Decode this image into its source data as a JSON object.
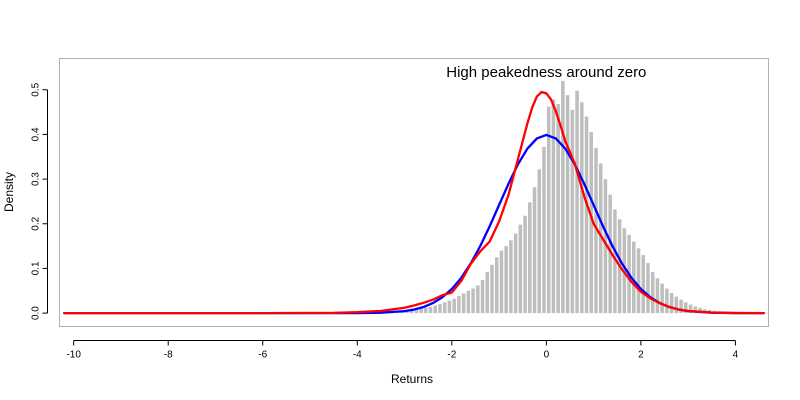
{
  "chart_data": {
    "type": "bar",
    "title": "",
    "xlabel": "Returns",
    "ylabel": "Density",
    "annotation": {
      "text": "High peakedness around zero",
      "x": 0.0,
      "y": 0.54
    },
    "xlim": [
      -10.3,
      4.7
    ],
    "ylim": [
      -0.03,
      0.57
    ],
    "x_ticks": [
      -10,
      -8,
      -6,
      -4,
      -2,
      0,
      2,
      4
    ],
    "x_tick_labels": [
      "-10",
      "-8",
      "-6",
      "-4",
      "-2",
      "0",
      "2",
      "4"
    ],
    "y_ticks": [
      0.0,
      0.1,
      0.2,
      0.3,
      0.4,
      0.5
    ],
    "y_tick_labels": [
      "0.0",
      "0.1",
      "0.2",
      "0.3",
      "0.4",
      "0.5"
    ],
    "grid": false,
    "histogram": {
      "name": "",
      "color": "#bebebe",
      "bin_width": 0.1,
      "start": -4.5,
      "values": [
        0.001,
        0.001,
        0.001,
        0.001,
        0.002,
        0.002,
        0.002,
        0.002,
        0.003,
        0.003,
        0.003,
        0.004,
        0.004,
        0.005,
        0.006,
        0.007,
        0.008,
        0.009,
        0.01,
        0.012,
        0.014,
        0.017,
        0.02,
        0.024,
        0.028,
        0.032,
        0.038,
        0.044,
        0.05,
        0.055,
        0.062,
        0.074,
        0.092,
        0.108,
        0.125,
        0.14,
        0.15,
        0.163,
        0.178,
        0.198,
        0.218,
        0.248,
        0.282,
        0.322,
        0.372,
        0.462,
        0.478,
        0.468,
        0.52,
        0.488,
        0.455,
        0.498,
        0.472,
        0.44,
        0.405,
        0.37,
        0.335,
        0.3,
        0.265,
        0.232,
        0.21,
        0.19,
        0.175,
        0.16,
        0.145,
        0.13,
        0.112,
        0.092,
        0.078,
        0.066,
        0.055,
        0.045,
        0.037,
        0.03,
        0.024,
        0.019,
        0.015,
        0.012,
        0.009,
        0.007,
        0.005,
        0.004,
        0.003,
        0.002,
        0.002,
        0.001,
        0.001,
        0.001
      ]
    },
    "series": [
      {
        "name": "",
        "type": "line",
        "color": "#0000ff",
        "x": [
          -10.2,
          -6,
          -4,
          -3.5,
          -3,
          -2.8,
          -2.6,
          -2.4,
          -2.2,
          -2.0,
          -1.8,
          -1.6,
          -1.4,
          -1.2,
          -1.0,
          -0.8,
          -0.6,
          -0.4,
          -0.2,
          0.0,
          0.2,
          0.4,
          0.6,
          0.8,
          1.0,
          1.2,
          1.4,
          1.6,
          1.8,
          2.0,
          2.2,
          2.4,
          2.6,
          2.8,
          3.0,
          3.5,
          4.0,
          4.6
        ],
        "y": [
          0,
          0,
          0.0001,
          0.0009,
          0.0044,
          0.0079,
          0.0136,
          0.0224,
          0.0355,
          0.054,
          0.079,
          0.1109,
          0.1497,
          0.1942,
          0.242,
          0.2897,
          0.3332,
          0.3683,
          0.391,
          0.3989,
          0.391,
          0.3683,
          0.3332,
          0.2897,
          0.242,
          0.1942,
          0.1497,
          0.1109,
          0.079,
          0.054,
          0.0355,
          0.0224,
          0.0136,
          0.0079,
          0.0044,
          0.0009,
          0.0001,
          0
        ]
      },
      {
        "name": "",
        "type": "line",
        "color": "#ff0000",
        "x": [
          -10.2,
          -6,
          -4.5,
          -4,
          -3.5,
          -3,
          -2.8,
          -2.6,
          -2.4,
          -2.2,
          -2.0,
          -1.8,
          -1.6,
          -1.4,
          -1.2,
          -1.0,
          -0.8,
          -0.6,
          -0.4,
          -0.3,
          -0.2,
          -0.1,
          0.0,
          0.1,
          0.2,
          0.3,
          0.4,
          0.6,
          0.8,
          1.0,
          1.2,
          1.4,
          1.6,
          1.8,
          2.0,
          2.2,
          2.4,
          2.6,
          2.8,
          3.0,
          3.5,
          4.0,
          4.6
        ],
        "y": [
          0,
          0,
          0.0005,
          0.002,
          0.005,
          0.012,
          0.017,
          0.023,
          0.03,
          0.04,
          0.046,
          0.072,
          0.11,
          0.138,
          0.16,
          0.205,
          0.265,
          0.345,
          0.425,
          0.46,
          0.485,
          0.495,
          0.492,
          0.478,
          0.452,
          0.42,
          0.385,
          0.335,
          0.262,
          0.2,
          0.165,
          0.13,
          0.098,
          0.07,
          0.048,
          0.033,
          0.022,
          0.014,
          0.008,
          0.005,
          0.001,
          0.0002,
          0
        ]
      }
    ]
  }
}
